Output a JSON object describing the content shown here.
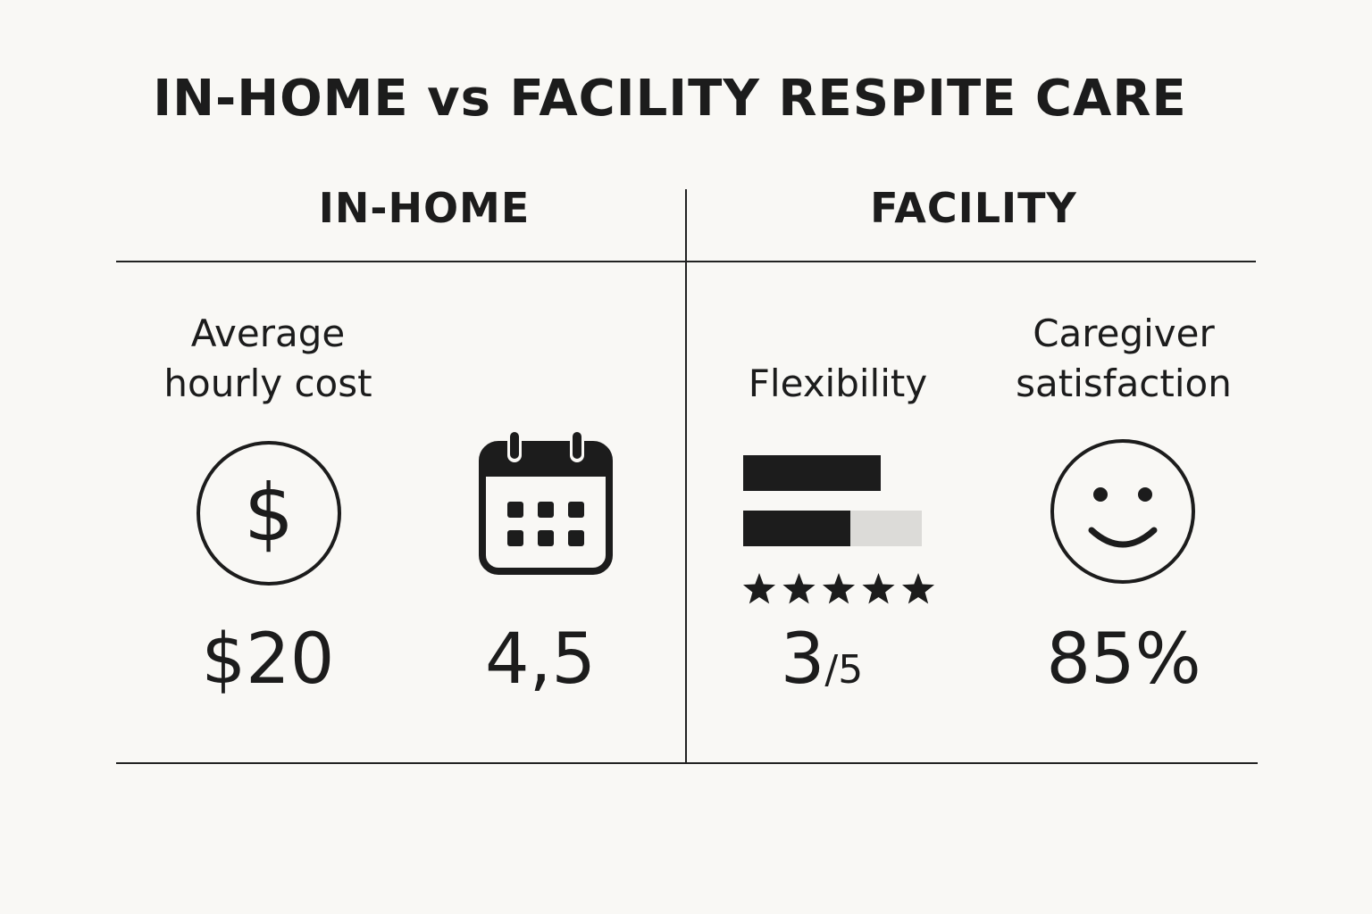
{
  "title": "IN-HOME vs FACILITY RESPITE CARE",
  "columns": {
    "in_home": "IN-HOME",
    "facility": "FACILITY"
  },
  "metrics": {
    "cost": {
      "label_line1": "Average",
      "label_line2": "hourly cost",
      "icon": "dollar-circle-icon",
      "value": "$20"
    },
    "calendar": {
      "icon": "calendar-icon",
      "value": "4,5"
    },
    "flexibility": {
      "label": "Flexibility",
      "icon": "bar-rating-icon",
      "bar_fill_fraction": 0.6,
      "stars": 5,
      "value_main": "3",
      "value_denominator": "/5"
    },
    "satisfaction": {
      "label_line1": "Caregiver",
      "label_line2": "satisfaction",
      "icon": "smiley-face-icon",
      "value": "85%"
    }
  },
  "colors": {
    "ink": "#1c1c1c",
    "bar_bg": "#dcdbd8",
    "background": "#f9f8f5"
  }
}
